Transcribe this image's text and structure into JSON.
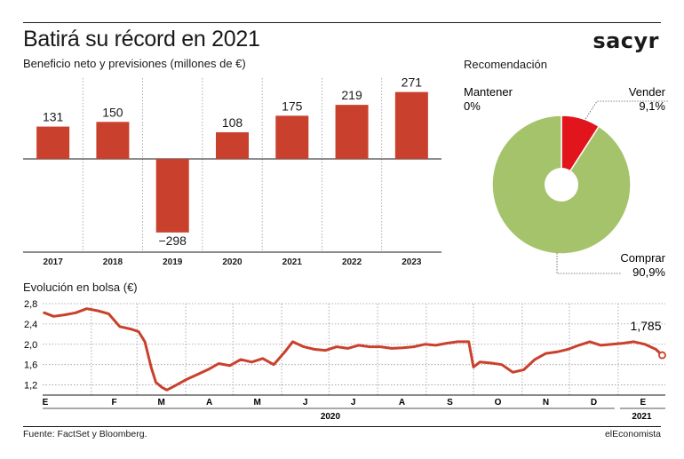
{
  "header": {
    "title": "Batirá su récord en 2021",
    "brand": "sacyr"
  },
  "footer": {
    "source": "Fuente: FactSet y Bloomberg.",
    "publisher": "elEconomista"
  },
  "colors": {
    "bar": "#c9412c",
    "line": "#c9412c",
    "comprar": "#a4c36a",
    "vender": "#e3151c",
    "grid": "#9a9a9a"
  },
  "chart_data": [
    {
      "type": "bar",
      "title": "Beneficio neto y previsiones (millones de €)",
      "categories": [
        "2017",
        "2018",
        "2019",
        "2020",
        "2021",
        "2022",
        "2023"
      ],
      "values": [
        131,
        150,
        -298,
        108,
        175,
        219,
        271
      ],
      "value_labels": [
        "131",
        "150",
        "−298",
        "108",
        "175",
        "219",
        "271"
      ],
      "ylim": [
        -340,
        320
      ],
      "grid": "vertical dotted"
    },
    {
      "type": "pie",
      "title": "Recomendación",
      "slices": [
        {
          "label": "Vender",
          "value_label": "9,1%",
          "value": 9.1
        },
        {
          "label": "Comprar",
          "value_label": "90,9%",
          "value": 90.9
        },
        {
          "label": "Mantener",
          "value_label": "0%",
          "value": 0
        }
      ]
    },
    {
      "type": "line",
      "title": "Evolución en bolsa (€)",
      "yticks": [
        "2,8",
        "2,4",
        "2,0",
        "1,6",
        "1,2"
      ],
      "ylim": [
        1.0,
        2.8
      ],
      "xticks": [
        "E",
        "F",
        "M",
        "A",
        "M",
        "J",
        "J",
        "A",
        "S",
        "O",
        "N",
        "D",
        "E"
      ],
      "year_labels": [
        "2020",
        "2021"
      ],
      "last_value_label": "1,785",
      "last_value": 1.785,
      "x": [
        "2020-01-02",
        "2020-01-08",
        "2020-01-15",
        "2020-01-22",
        "2020-01-29",
        "2020-02-05",
        "2020-02-12",
        "2020-02-19",
        "2020-02-26",
        "2020-03-02",
        "2020-03-06",
        "2020-03-10",
        "2020-03-13",
        "2020-03-17",
        "2020-03-20",
        "2020-03-25",
        "2020-04-01",
        "2020-04-08",
        "2020-04-15",
        "2020-04-22",
        "2020-04-29",
        "2020-05-06",
        "2020-05-13",
        "2020-05-20",
        "2020-05-27",
        "2020-06-03",
        "2020-06-08",
        "2020-06-15",
        "2020-06-22",
        "2020-06-29",
        "2020-07-06",
        "2020-07-13",
        "2020-07-20",
        "2020-07-27",
        "2020-08-03",
        "2020-08-10",
        "2020-08-17",
        "2020-08-24",
        "2020-08-31",
        "2020-09-07",
        "2020-09-14",
        "2020-09-21",
        "2020-09-28",
        "2020-10-01",
        "2020-10-05",
        "2020-10-12",
        "2020-10-19",
        "2020-10-26",
        "2020-11-02",
        "2020-11-09",
        "2020-11-16",
        "2020-11-23",
        "2020-11-30",
        "2020-12-07",
        "2020-12-14",
        "2020-12-21",
        "2020-12-28",
        "2021-01-04",
        "2021-01-11",
        "2021-01-18",
        "2021-01-25",
        "2021-01-29"
      ],
      "y": [
        2.62,
        2.55,
        2.58,
        2.62,
        2.7,
        2.66,
        2.6,
        2.35,
        2.3,
        2.25,
        2.05,
        1.55,
        1.25,
        1.15,
        1.1,
        1.18,
        1.3,
        1.4,
        1.5,
        1.62,
        1.58,
        1.7,
        1.65,
        1.72,
        1.6,
        1.85,
        2.05,
        1.95,
        1.9,
        1.88,
        1.95,
        1.92,
        1.98,
        1.95,
        1.95,
        1.92,
        1.93,
        1.95,
        2.0,
        1.98,
        2.02,
        2.05,
        2.05,
        1.55,
        1.65,
        1.63,
        1.6,
        1.45,
        1.5,
        1.7,
        1.82,
        1.85,
        1.9,
        1.98,
        2.05,
        1.98,
        2.0,
        2.02,
        2.05,
        2.0,
        1.9,
        1.785
      ]
    }
  ]
}
